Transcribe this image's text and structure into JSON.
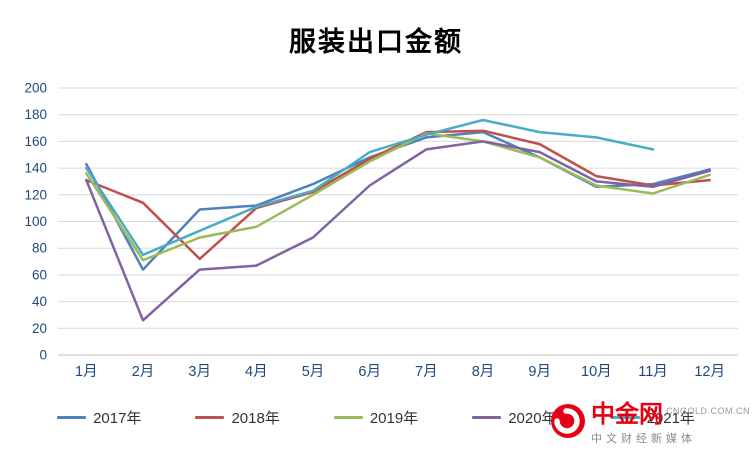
{
  "title": "服装出口金额",
  "chart_data": {
    "type": "line",
    "title": "服装出口金额",
    "categories": [
      "1月",
      "2月",
      "3月",
      "4月",
      "5月",
      "6月",
      "7月",
      "8月",
      "9月",
      "10月",
      "11月",
      "12月"
    ],
    "ylim": [
      0,
      200
    ],
    "ytick_step": 20,
    "grid": true,
    "legend_position": "bottom",
    "axis_label_color": "#1F497D",
    "gridline_color": "#D9D9D9",
    "baseline_color": "#BFBFBF",
    "series": [
      {
        "name": "2017年",
        "color": "#4F81BD",
        "values": [
          143,
          64,
          109,
          112,
          128,
          148,
          163,
          167,
          148,
          126,
          128,
          139
        ]
      },
      {
        "name": "2018年",
        "color": "#C0504D",
        "values": [
          131,
          114,
          72,
          110,
          122,
          147,
          167,
          168,
          158,
          134,
          127,
          131
        ]
      },
      {
        "name": "2019年",
        "color": "#9BBB59",
        "values": [
          136,
          71,
          88,
          96,
          120,
          145,
          166,
          160,
          148,
          127,
          121,
          135
        ]
      },
      {
        "name": "2020年",
        "color": "#8064A2",
        "values": [
          131,
          26,
          64,
          67,
          88,
          127,
          154,
          160,
          152,
          130,
          126,
          138
        ]
      },
      {
        "name": "2021年",
        "color": "#4BACC6",
        "values": [
          140,
          75,
          93,
          111,
          123,
          152,
          165,
          176,
          167,
          163,
          154,
          null
        ]
      }
    ]
  },
  "watermark": {
    "brand": "中金网",
    "domain": "CNGOLD.COM.CN",
    "tagline": "中文财经新媒体",
    "brand_color": "#E60012"
  }
}
